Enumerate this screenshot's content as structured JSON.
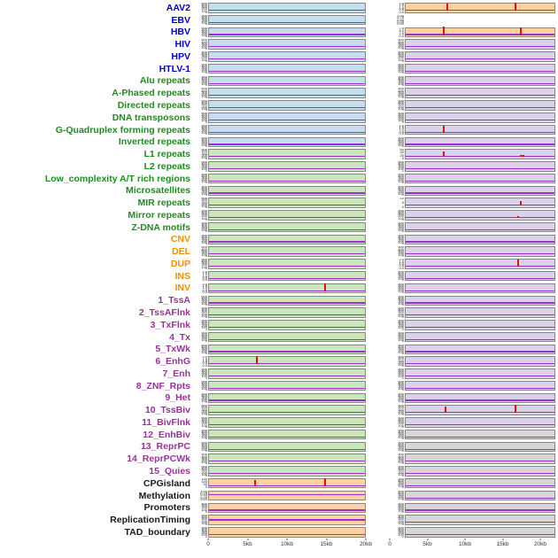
{
  "chart_data": {
    "type": "line",
    "title": "",
    "description": "Small-multiple genomic annotation tracks: 44 labeled rows, each with two coverage panels over a 0-20kb window; flat purple baseline with occasional red enrichment spikes",
    "x_ticks": [
      "0",
      "5kb",
      "10kb",
      "15kb",
      "20kb"
    ],
    "x_range_kb": [
      0,
      20
    ],
    "default_y_ticks": [
      "500",
      "400",
      "300",
      "200",
      "100",
      "0"
    ],
    "palette": {
      "label_colors": {
        "virus": "#0000cd",
        "repeat": "#228b22",
        "sv": "#f09000",
        "chromatin": "#993399",
        "other": "#1a1a1a"
      },
      "strip_colors": {
        "blue": "#c7dcec",
        "green": "#cbe5bc",
        "orange": "#fdd2a3",
        "purple": "#d9d2e9",
        "gray": "#d6d6d6",
        "none": "transparent"
      },
      "baseline_color": "#9932cc",
      "spike_color": "#e31010",
      "axis_text_color": "#333333"
    },
    "rows": [
      {
        "label": "AAV2",
        "group": "virus",
        "left": {
          "bg": "blue"
        },
        "right": {
          "bg": "orange",
          "ticks": [
            "2.0",
            "1.5",
            "1.0",
            "0.5",
            "0.0"
          ],
          "spikes": [
            {
              "x": 5.5,
              "h": 0.85
            },
            {
              "x": 14.6,
              "h": 1.0
            }
          ]
        }
      },
      {
        "label": "EBV",
        "group": "virus",
        "left": {
          "bg": "blue"
        },
        "right": {
          "bg": "none",
          "ticks": [
            "1.00",
            "0.75",
            "0.50",
            "0.25",
            "0.00"
          ]
        }
      },
      {
        "label": "HBV",
        "group": "virus",
        "left": {
          "bg": "blue"
        },
        "right": {
          "bg": "orange",
          "ticks": [
            "7.5",
            "5.0",
            "2.5",
            "0.0"
          ],
          "spikes": [
            {
              "x": 5.0,
              "h": 1.0
            },
            {
              "x": 15.4,
              "h": 0.9
            }
          ]
        }
      },
      {
        "label": "HIV",
        "group": "virus",
        "left": {
          "bg": "blue"
        },
        "right": {
          "bg": "purple"
        }
      },
      {
        "label": "HPV",
        "group": "virus",
        "left": {
          "bg": "blue"
        },
        "right": {
          "bg": "purple"
        }
      },
      {
        "label": "HTLV-1",
        "group": "virus",
        "left": {
          "bg": "blue"
        },
        "right": {
          "bg": "purple"
        }
      },
      {
        "label": "Alu repeats",
        "group": "repeat",
        "left": {
          "bg": "blue"
        },
        "right": {
          "bg": "purple"
        }
      },
      {
        "label": "A-Phased repeats",
        "group": "repeat",
        "left": {
          "bg": "blue"
        },
        "right": {
          "bg": "purple"
        }
      },
      {
        "label": "Directed repeats",
        "group": "repeat",
        "left": {
          "bg": "blue"
        },
        "right": {
          "bg": "purple"
        }
      },
      {
        "label": "DNA transposons",
        "group": "repeat",
        "left": {
          "bg": "blue"
        },
        "right": {
          "bg": "purple"
        }
      },
      {
        "label": "G-Quadruplex forming repeats",
        "group": "repeat",
        "left": {
          "bg": "blue"
        },
        "right": {
          "bg": "purple",
          "ticks": [
            "2.0",
            "1.5",
            "1.0",
            "0.5",
            "0.0"
          ],
          "spikes": [
            {
              "x": 5.0,
              "h": 0.8
            }
          ]
        }
      },
      {
        "label": "Inverted repeats",
        "group": "repeat",
        "left": {
          "bg": "blue"
        },
        "right": {
          "bg": "purple"
        }
      },
      {
        "label": "L1 repeats",
        "group": "repeat",
        "left": {
          "bg": "green"
        },
        "right": {
          "bg": "purple",
          "ticks": [
            "60",
            "40",
            "20",
            "0"
          ],
          "spikes": [
            {
              "x": 5.0,
              "h": 0.65
            },
            {
              "x": 15.3,
              "h": 0.2,
              "w": 5
            }
          ]
        }
      },
      {
        "label": "L2 repeats",
        "group": "repeat",
        "left": {
          "bg": "green"
        },
        "right": {
          "bg": "purple"
        }
      },
      {
        "label": "Low_complexity A/T rich regions",
        "group": "repeat",
        "left": {
          "bg": "green"
        },
        "right": {
          "bg": "purple"
        }
      },
      {
        "label": "Microsatellites",
        "group": "repeat",
        "left": {
          "bg": "green"
        },
        "right": {
          "bg": "purple"
        }
      },
      {
        "label": "MIR repeats",
        "group": "repeat",
        "left": {
          "bg": "green"
        },
        "right": {
          "bg": "purple",
          "ticks": [
            "10",
            "5",
            "0"
          ],
          "spikes": [
            {
              "x": 15.4,
              "h": 0.55
            }
          ]
        }
      },
      {
        "label": "Mirror repeats",
        "group": "repeat",
        "left": {
          "bg": "green"
        },
        "right": {
          "bg": "purple",
          "spikes": [
            {
              "x": 15.0,
              "h": 0.2
            }
          ]
        }
      },
      {
        "label": "Z-DNA motifs",
        "group": "repeat",
        "left": {
          "bg": "green"
        },
        "right": {
          "bg": "purple"
        }
      },
      {
        "label": "CNV",
        "group": "sv",
        "left": {
          "bg": "green"
        },
        "right": {
          "bg": "purple"
        }
      },
      {
        "label": "DEL",
        "group": "sv",
        "left": {
          "bg": "green"
        },
        "right": {
          "bg": "purple"
        }
      },
      {
        "label": "DUP",
        "group": "sv",
        "left": {
          "bg": "green"
        },
        "right": {
          "bg": "purple",
          "ticks": [
            "2.0",
            "1.5",
            "1.0",
            "0.5",
            "0.0"
          ],
          "spikes": [
            {
              "x": 15.0,
              "h": 0.9
            }
          ]
        }
      },
      {
        "label": "INS",
        "group": "sv",
        "left": {
          "bg": "green",
          "ticks": [
            "2.0",
            "1.5",
            "1.0",
            "0.5",
            "0.0"
          ]
        },
        "right": {
          "bg": "purple"
        }
      },
      {
        "label": "INV",
        "group": "sv",
        "left": {
          "bg": "green",
          "ticks": [
            "2.0",
            "1.5",
            "1.0",
            "0.5",
            "0.0"
          ],
          "spikes": [
            {
              "x": 14.8,
              "h": 0.95
            }
          ]
        },
        "right": {
          "bg": "purple"
        }
      },
      {
        "label": "1_TssA",
        "group": "chromatin",
        "left": {
          "bg": "green"
        },
        "right": {
          "bg": "purple"
        }
      },
      {
        "label": "2_TssAFlnk",
        "group": "chromatin",
        "left": {
          "bg": "green"
        },
        "right": {
          "bg": "purple"
        }
      },
      {
        "label": "3_TxFlnk",
        "group": "chromatin",
        "left": {
          "bg": "green"
        },
        "right": {
          "bg": "purple"
        }
      },
      {
        "label": "4_Tx",
        "group": "chromatin",
        "left": {
          "bg": "green"
        },
        "right": {
          "bg": "purple"
        }
      },
      {
        "label": "5_TxWk",
        "group": "chromatin",
        "left": {
          "bg": "green"
        },
        "right": {
          "bg": "purple"
        }
      },
      {
        "label": "6_EnhG",
        "group": "chromatin",
        "left": {
          "bg": "green",
          "ticks": [
            "2.0",
            "1.5",
            "1.0",
            "0.5",
            "0.0"
          ],
          "spikes": [
            {
              "x": 6.0,
              "h": 0.95
            }
          ]
        },
        "right": {
          "bg": "purple"
        }
      },
      {
        "label": "7_Enh",
        "group": "chromatin",
        "left": {
          "bg": "green"
        },
        "right": {
          "bg": "purple"
        }
      },
      {
        "label": "8_ZNF_Rpts",
        "group": "chromatin",
        "left": {
          "bg": "green"
        },
        "right": {
          "bg": "purple"
        }
      },
      {
        "label": "9_Het",
        "group": "chromatin",
        "left": {
          "bg": "green"
        },
        "right": {
          "bg": "purple"
        }
      },
      {
        "label": "10_TssBiv",
        "group": "chromatin",
        "left": {
          "bg": "green"
        },
        "right": {
          "bg": "purple",
          "spikes": [
            {
              "x": 5.2,
              "h": 0.8
            },
            {
              "x": 14.6,
              "h": 0.95
            }
          ]
        }
      },
      {
        "label": "11_BivFlnk",
        "group": "chromatin",
        "left": {
          "bg": "green"
        },
        "right": {
          "bg": "purple"
        }
      },
      {
        "label": "12_EnhBiv",
        "group": "chromatin",
        "left": {
          "bg": "green"
        },
        "right": {
          "bg": "gray"
        }
      },
      {
        "label": "13_ReprPC",
        "group": "chromatin",
        "left": {
          "bg": "green"
        },
        "right": {
          "bg": "gray"
        }
      },
      {
        "label": "14_ReprPCWk",
        "group": "chromatin",
        "left": {
          "bg": "green"
        },
        "right": {
          "bg": "gray"
        }
      },
      {
        "label": "15_Quies",
        "group": "chromatin",
        "left": {
          "bg": "green"
        },
        "right": {
          "bg": "gray"
        }
      },
      {
        "label": "CPGisland",
        "group": "other",
        "left": {
          "bg": "orange",
          "ticks": [
            "150",
            "100",
            "50",
            "0"
          ],
          "spikes": [
            {
              "x": 5.8,
              "h": 0.75
            },
            {
              "x": 14.8,
              "h": 0.9
            }
          ]
        },
        "right": {
          "bg": "gray"
        }
      },
      {
        "label": "Methylation",
        "group": "other",
        "left": {
          "bg": "orange",
          "ticks": [
            "1.00",
            "0.75",
            "0.50",
            "0.25",
            "0.00"
          ],
          "line_pos": 0.5
        },
        "right": {
          "bg": "gray"
        }
      },
      {
        "label": "Promoters",
        "group": "other",
        "left": {
          "bg": "orange",
          "ticks": [
            "400",
            "300",
            "200",
            "100",
            "0"
          ]
        },
        "right": {
          "bg": "gray"
        }
      },
      {
        "label": "ReplicationTiming",
        "group": "other",
        "left": {
          "bg": "orange",
          "line_pos": 0.35
        },
        "right": {
          "bg": "gray"
        }
      },
      {
        "label": "TAD_boundary",
        "group": "other",
        "left": {
          "bg": "orange"
        },
        "right": {
          "bg": "gray"
        }
      }
    ]
  }
}
